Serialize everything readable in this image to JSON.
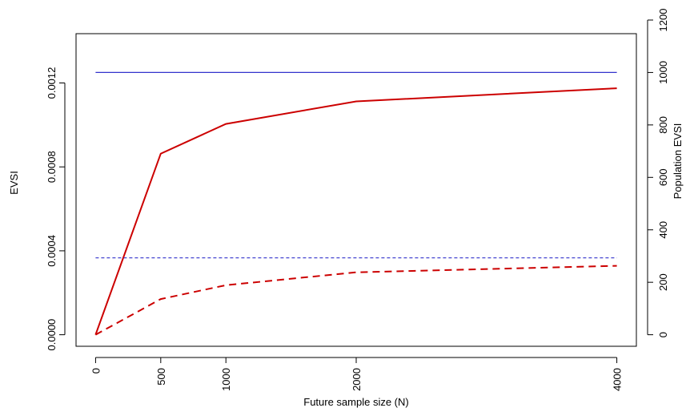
{
  "chart_data": {
    "type": "line",
    "title": "",
    "xlabel": "Future sample size (N)",
    "ylabel": "EVSI",
    "y2label": "Population EVSI",
    "x_ticks": [
      0,
      500,
      1000,
      2000,
      4000
    ],
    "x_tick_labels": [
      "0",
      "500",
      "1000",
      "2000",
      "4000"
    ],
    "y_ticks": [
      0,
      0.0004,
      0.0008,
      0.0012
    ],
    "y_tick_labels": [
      "0.0000",
      "0.0004",
      "0.0008",
      "0.0012"
    ],
    "y2_ticks": [
      0,
      200,
      400,
      600,
      800,
      1000,
      1200
    ],
    "y2_tick_labels": [
      "0",
      "200",
      "400",
      "600",
      "800",
      "1000",
      "1200"
    ],
    "xlim": [
      -150,
      4150
    ],
    "ylim": [
      -5.5e-05,
      0.001435
    ],
    "y2lim": [
      -44,
      1148
    ],
    "grid": false,
    "colors": {
      "red": "#cc0000",
      "blue": "#3333cc"
    },
    "series": [
      {
        "axis": "left",
        "style": "solid",
        "color": "#3333cc",
        "x": [
          0,
          4000
        ],
        "y": [
          0.00125,
          0.00125
        ]
      },
      {
        "axis": "left",
        "style": "solid",
        "color": "#cc0000",
        "x": [
          0,
          500,
          1000,
          2000,
          4000
        ],
        "y": [
          0.0,
          0.000863,
          0.001005,
          0.001112,
          0.001175
        ]
      },
      {
        "axis": "right",
        "style": "dashed",
        "color": "#3333cc",
        "x": [
          0,
          4000
        ],
        "y": [
          293,
          293
        ]
      },
      {
        "axis": "right",
        "style": "dashed",
        "color": "#cc0000",
        "x": [
          0,
          500,
          1000,
          2000,
          4000
        ],
        "y": [
          0,
          136,
          189,
          238,
          263
        ]
      }
    ]
  }
}
